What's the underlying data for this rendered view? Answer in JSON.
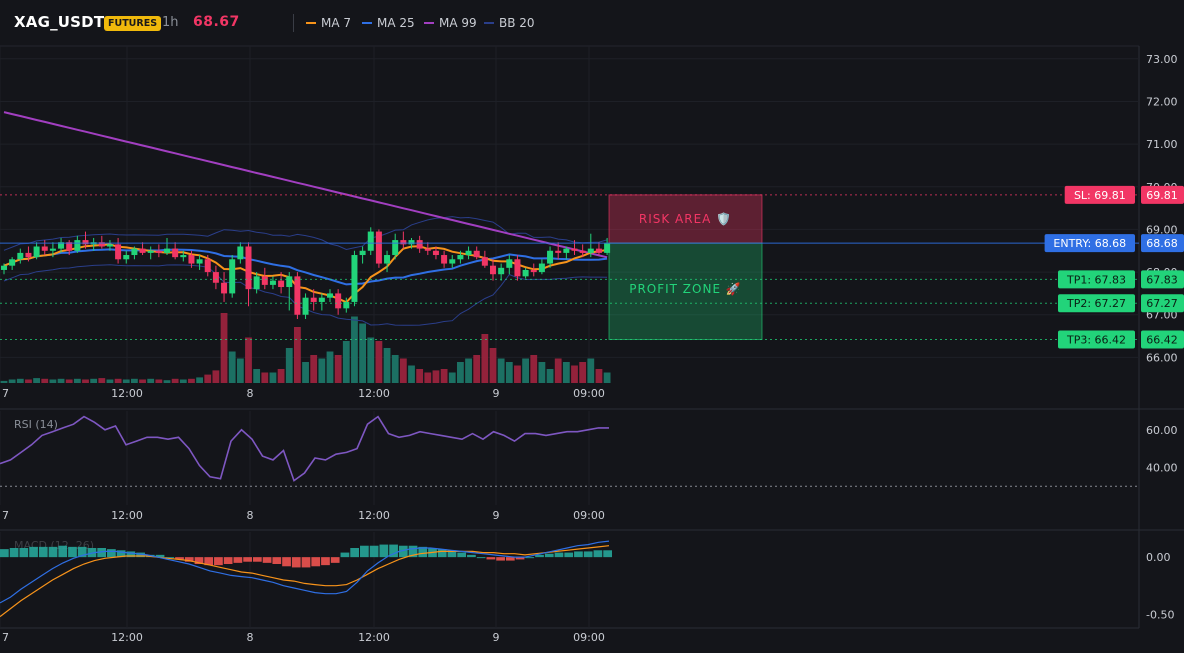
{
  "header": {
    "symbol": "XAG_USDT",
    "badge": "FUTURES",
    "timeframe": "1h",
    "price": "68.67",
    "legend": [
      {
        "label": "MA 7",
        "color": "#f7931a"
      },
      {
        "label": "MA 25",
        "color": "#2f6fe4"
      },
      {
        "label": "MA 99",
        "color": "#a23fc1"
      },
      {
        "label": "BB 20",
        "color": "#2a3e8a"
      }
    ]
  },
  "colors": {
    "up": "#26a69a",
    "upBody": "#22d47a",
    "down": "#f23665",
    "bg": "#14151a"
  },
  "chart_data": [
    {
      "type": "candlestick",
      "panel": "price",
      "ylim": [
        65.4,
        73.3
      ],
      "yticks": [
        "73.00",
        "72.00",
        "71.00",
        "70.00",
        "69.00",
        "68.00",
        "67.00",
        "66.00"
      ],
      "xticks": [
        "7",
        "12:00",
        "8",
        "12:00",
        "9",
        "09:00"
      ],
      "ohlc": [
        [
          68.05,
          68.2,
          67.95,
          68.15
        ],
        [
          68.15,
          68.35,
          68.05,
          68.3
        ],
        [
          68.3,
          68.55,
          68.2,
          68.45
        ],
        [
          68.45,
          68.6,
          68.25,
          68.35
        ],
        [
          68.35,
          68.7,
          68.3,
          68.6
        ],
        [
          68.6,
          68.75,
          68.4,
          68.5
        ],
        [
          68.5,
          68.7,
          68.35,
          68.55
        ],
        [
          68.55,
          68.8,
          68.45,
          68.7
        ],
        [
          68.7,
          68.75,
          68.4,
          68.5
        ],
        [
          68.5,
          68.85,
          68.45,
          68.75
        ],
        [
          68.75,
          68.95,
          68.55,
          68.65
        ],
        [
          68.65,
          68.8,
          68.5,
          68.7
        ],
        [
          68.7,
          68.85,
          68.55,
          68.6
        ],
        [
          68.6,
          68.75,
          68.5,
          68.65
        ],
        [
          68.65,
          68.8,
          68.2,
          68.3
        ],
        [
          68.3,
          68.5,
          68.2,
          68.4
        ],
        [
          68.4,
          68.6,
          68.3,
          68.55
        ],
        [
          68.55,
          68.7,
          68.4,
          68.45
        ],
        [
          68.45,
          68.6,
          68.3,
          68.5
        ],
        [
          68.5,
          68.65,
          68.35,
          68.45
        ],
        [
          68.45,
          68.8,
          68.4,
          68.55
        ],
        [
          68.55,
          68.7,
          68.3,
          68.35
        ],
        [
          68.35,
          68.5,
          68.25,
          68.4
        ],
        [
          68.4,
          68.5,
          68.1,
          68.2
        ],
        [
          68.2,
          68.4,
          68.05,
          68.3
        ],
        [
          68.3,
          68.4,
          67.9,
          68.0
        ],
        [
          68.0,
          68.15,
          67.6,
          67.75
        ],
        [
          67.75,
          68.0,
          67.3,
          67.5
        ],
        [
          67.5,
          68.4,
          67.4,
          68.3
        ],
        [
          68.3,
          68.7,
          68.2,
          68.6
        ],
        [
          68.6,
          68.7,
          67.2,
          67.6
        ],
        [
          67.6,
          68.0,
          67.5,
          67.9
        ],
        [
          67.9,
          68.1,
          67.6,
          67.7
        ],
        [
          67.7,
          67.9,
          67.6,
          67.8
        ],
        [
          67.8,
          68.0,
          67.5,
          67.65
        ],
        [
          67.65,
          68.0,
          67.1,
          67.9
        ],
        [
          67.9,
          68.0,
          66.9,
          67.0
        ],
        [
          67.0,
          67.5,
          66.9,
          67.4
        ],
        [
          67.4,
          67.6,
          67.1,
          67.3
        ],
        [
          67.3,
          67.5,
          67.1,
          67.4
        ],
        [
          67.4,
          67.6,
          67.3,
          67.5
        ],
        [
          67.5,
          67.6,
          67.0,
          67.15
        ],
        [
          67.15,
          67.4,
          67.05,
          67.3
        ],
        [
          67.3,
          68.5,
          67.2,
          68.4
        ],
        [
          68.4,
          68.6,
          68.2,
          68.5
        ],
        [
          68.5,
          69.05,
          68.4,
          68.95
        ],
        [
          68.95,
          69.0,
          68.1,
          68.2
        ],
        [
          68.2,
          68.5,
          68.0,
          68.4
        ],
        [
          68.4,
          68.9,
          68.3,
          68.75
        ],
        [
          68.75,
          68.95,
          68.55,
          68.65
        ],
        [
          68.65,
          68.8,
          68.55,
          68.75
        ],
        [
          68.75,
          68.85,
          68.45,
          68.55
        ],
        [
          68.55,
          68.7,
          68.4,
          68.5
        ],
        [
          68.5,
          68.6,
          68.3,
          68.4
        ],
        [
          68.4,
          68.5,
          68.1,
          68.2
        ],
        [
          68.2,
          68.4,
          68.1,
          68.3
        ],
        [
          68.3,
          68.5,
          68.2,
          68.4
        ],
        [
          68.4,
          68.6,
          68.3,
          68.5
        ],
        [
          68.5,
          68.6,
          68.3,
          68.35
        ],
        [
          68.35,
          68.5,
          68.1,
          68.15
        ],
        [
          68.15,
          68.3,
          67.8,
          67.95
        ],
        [
          67.95,
          68.2,
          67.8,
          68.1
        ],
        [
          68.1,
          68.4,
          67.95,
          68.3
        ],
        [
          68.3,
          68.4,
          67.8,
          67.9
        ],
        [
          67.9,
          68.1,
          67.85,
          68.05
        ],
        [
          68.05,
          68.2,
          67.9,
          68.0
        ],
        [
          68.0,
          68.3,
          67.95,
          68.2
        ],
        [
          68.2,
          68.6,
          68.1,
          68.5
        ],
        [
          68.5,
          68.7,
          68.3,
          68.45
        ],
        [
          68.45,
          68.6,
          68.3,
          68.55
        ],
        [
          68.55,
          68.75,
          68.4,
          68.5
        ],
        [
          68.5,
          68.65,
          68.35,
          68.45
        ],
        [
          68.45,
          68.9,
          68.35,
          68.55
        ],
        [
          68.55,
          68.7,
          68.4,
          68.45
        ],
        [
          68.45,
          68.8,
          68.4,
          68.67
        ]
      ],
      "volume": [
        0.03,
        0.05,
        0.06,
        0.05,
        0.07,
        0.06,
        0.05,
        0.06,
        0.05,
        0.06,
        0.05,
        0.06,
        0.07,
        0.05,
        0.06,
        0.05,
        0.06,
        0.05,
        0.06,
        0.05,
        0.04,
        0.06,
        0.05,
        0.06,
        0.08,
        0.12,
        0.18,
        1.0,
        0.45,
        0.35,
        0.65,
        0.2,
        0.15,
        0.15,
        0.2,
        0.5,
        0.8,
        0.3,
        0.4,
        0.35,
        0.45,
        0.4,
        0.6,
        0.95,
        0.85,
        0.65,
        0.6,
        0.5,
        0.4,
        0.35,
        0.25,
        0.2,
        0.15,
        0.18,
        0.2,
        0.15,
        0.3,
        0.35,
        0.4,
        0.7,
        0.5,
        0.35,
        0.3,
        0.25,
        0.35,
        0.4,
        0.3,
        0.2,
        0.35,
        0.3,
        0.25,
        0.3,
        0.35,
        0.2,
        0.15
      ],
      "ma7_series": "MA 7",
      "ma25_series": "MA 25",
      "ma99_series": "MA 99",
      "bb_series": "BB 20",
      "zones": [
        {
          "label": "RISK AREA 🛡️",
          "from": 68.68,
          "to": 69.81,
          "color": "#f23665"
        },
        {
          "label": "PROFIT ZONE 🚀",
          "from": 66.42,
          "to": 68.68,
          "color": "#22d47a"
        }
      ],
      "levels": [
        {
          "label": "SL: 69.81",
          "price": 69.81,
          "value": "69.81",
          "color": "#f23665",
          "style": "dotted"
        },
        {
          "label": "ENTRY: 68.68",
          "price": 68.68,
          "value": "68.68",
          "color": "#2f6fe4",
          "style": "solid"
        },
        {
          "label": "TP1: 67.83",
          "price": 67.83,
          "value": "67.83",
          "color": "#22d47a",
          "style": "dotted"
        },
        {
          "label": "TP2: 67.27",
          "price": 67.27,
          "value": "67.27",
          "color": "#22d47a",
          "style": "dotted"
        },
        {
          "label": "TP3: 66.42",
          "price": 66.42,
          "value": "66.42",
          "color": "#22d47a",
          "style": "dotted"
        }
      ]
    },
    {
      "type": "line",
      "panel": "rsi",
      "title": "RSI (14)",
      "ylim": [
        20,
        70
      ],
      "yticks": [
        "60.00",
        "40.00"
      ],
      "level": 30,
      "values": [
        42,
        44,
        48,
        52,
        57,
        59,
        61,
        63,
        67,
        64,
        60,
        62,
        52,
        54,
        56,
        56,
        55,
        56,
        50,
        41,
        35,
        34,
        54,
        60,
        55,
        46,
        44,
        49,
        33,
        37,
        45,
        44,
        47,
        48,
        50,
        63,
        67,
        58,
        56,
        57,
        59,
        58,
        57,
        56,
        55,
        58,
        55,
        59,
        57,
        54,
        58,
        58,
        57,
        58,
        59,
        59,
        60,
        61,
        61
      ],
      "color": "#7e57c2"
    },
    {
      "type": "bar+line",
      "panel": "macd",
      "title": "MACD (12, 26)",
      "ylim": [
        -0.62,
        0.22
      ],
      "yticks": [
        "0.00",
        "-0.50"
      ],
      "histogram": [
        0.07,
        0.08,
        0.08,
        0.09,
        0.09,
        0.09,
        0.1,
        0.09,
        0.09,
        0.08,
        0.08,
        0.07,
        0.06,
        0.05,
        0.04,
        0.02,
        0.02,
        0.0,
        -0.02,
        -0.04,
        -0.06,
        -0.07,
        -0.07,
        -0.06,
        -0.05,
        -0.04,
        -0.04,
        -0.05,
        -0.06,
        -0.08,
        -0.09,
        -0.09,
        -0.08,
        -0.07,
        -0.05,
        0.04,
        0.08,
        0.1,
        0.1,
        0.11,
        0.11,
        0.1,
        0.1,
        0.09,
        0.08,
        0.07,
        0.06,
        0.04,
        0.02,
        0.0,
        -0.02,
        -0.03,
        -0.03,
        -0.02,
        0.0,
        0.02,
        0.03,
        0.04,
        0.04,
        0.05,
        0.05,
        0.06,
        0.06
      ],
      "macd": [
        -0.4,
        -0.35,
        -0.28,
        -0.22,
        -0.16,
        -0.1,
        -0.05,
        -0.01,
        0.02,
        0.04,
        0.05,
        0.05,
        0.04,
        0.03,
        0.02,
        0.0,
        -0.02,
        -0.04,
        -0.06,
        -0.09,
        -0.12,
        -0.14,
        -0.16,
        -0.17,
        -0.18,
        -0.2,
        -0.22,
        -0.25,
        -0.27,
        -0.29,
        -0.31,
        -0.32,
        -0.32,
        -0.3,
        -0.22,
        -0.12,
        -0.05,
        0.01,
        0.05,
        0.07,
        0.08,
        0.08,
        0.07,
        0.06,
        0.05,
        0.04,
        0.03,
        0.02,
        0.01,
        0.0,
        0.0,
        0.02,
        0.04,
        0.06,
        0.08,
        0.1,
        0.11,
        0.13,
        0.14
      ],
      "signal": [
        -0.52,
        -0.45,
        -0.38,
        -0.32,
        -0.26,
        -0.2,
        -0.15,
        -0.1,
        -0.06,
        -0.03,
        -0.01,
        0.0,
        0.01,
        0.01,
        0.01,
        0.0,
        -0.01,
        -0.02,
        -0.03,
        -0.05,
        -0.07,
        -0.09,
        -0.11,
        -0.13,
        -0.14,
        -0.16,
        -0.18,
        -0.2,
        -0.21,
        -0.23,
        -0.24,
        -0.25,
        -0.25,
        -0.24,
        -0.2,
        -0.15,
        -0.1,
        -0.06,
        -0.02,
        0.01,
        0.03,
        0.04,
        0.05,
        0.05,
        0.05,
        0.05,
        0.04,
        0.04,
        0.03,
        0.03,
        0.02,
        0.03,
        0.04,
        0.05,
        0.06,
        0.07,
        0.08,
        0.09,
        0.1
      ],
      "macd_color": "#2f6fe4",
      "signal_color": "#f7931a"
    }
  ]
}
